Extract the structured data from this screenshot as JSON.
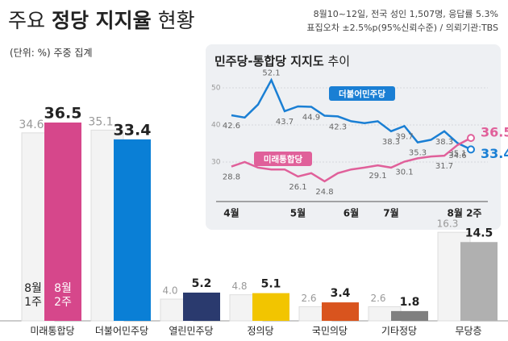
{
  "chart_data": [
    {
      "type": "bar",
      "title": [
        "주요",
        "정당 지지율",
        "현황"
      ],
      "subtitle": "(단위: %) 주중 집계",
      "notes": [
        "8월10~12일, 전국 성인 1,507명, 응답률 5.3%",
        "표집오차 ±2.5%p(95%신뢰수준) / 의뢰기관:TBS"
      ],
      "categories": [
        "미래통합당",
        "더불어민주당",
        "열린민주당",
        "정의당",
        "국민의당",
        "기타정당",
        "무당층"
      ],
      "series": [
        {
          "name": "8월 1주",
          "color": "#f3f3f3",
          "values": [
            34.6,
            35.1,
            4.0,
            4.8,
            2.6,
            2.6,
            16.3
          ],
          "value_labels": [
            "34.6",
            "35.1",
            "4.0",
            "4.8",
            "2.6",
            "2.6",
            "16.3"
          ]
        },
        {
          "name": "8월 2주",
          "colors": [
            "#d6478b",
            "#0a7fd6",
            "#2a3a6e",
            "#f2c500",
            "#d9541e",
            "#7f7f7f",
            "#b0b0b0"
          ],
          "values": [
            36.5,
            33.4,
            5.2,
            5.1,
            3.4,
            1.8,
            14.5
          ]
        }
      ]
    },
    {
      "type": "line",
      "title": [
        "민주당-통합당 지지도",
        "추이"
      ],
      "categories": [
        "4월",
        null,
        null,
        null,
        null,
        "5월",
        null,
        null,
        null,
        "6월",
        null,
        null,
        "7월",
        null,
        null,
        null,
        null,
        null,
        "8월 2주"
      ],
      "ylim": [
        20,
        55
      ],
      "yticks": [
        30,
        40,
        50
      ],
      "grid": true,
      "series": [
        {
          "name": "더불어민주당",
          "color": "#1a7fd4",
          "values": [
            42.6,
            42,
            45.5,
            52.1,
            43.7,
            45,
            44.9,
            42.5,
            42.3,
            41,
            40.5,
            41,
            38.3,
            39.7,
            35.3,
            36,
            38.3,
            35.1,
            33.4
          ],
          "value_labels": [
            "42.6",
            null,
            null,
            "52.1",
            "43.7",
            null,
            "44.9",
            null,
            "42.3",
            null,
            null,
            null,
            "38.3",
            "39.7",
            "35.3",
            null,
            "38.3",
            "35.1",
            "33.4"
          ]
        },
        {
          "name": "미래통합당",
          "color": "#e0609a",
          "values": [
            28.8,
            30,
            28.5,
            28,
            28,
            26.1,
            27,
            24.8,
            27,
            28,
            28.5,
            29.1,
            28.5,
            30.1,
            31,
            31.5,
            31.7,
            34.6,
            36.5
          ],
          "value_labels": [
            "28.8",
            null,
            null,
            null,
            null,
            "26.1",
            null,
            "24.8",
            null,
            null,
            null,
            "29.1",
            null,
            "30.1",
            null,
            null,
            "31.7",
            "34.6",
            "36.5"
          ]
        }
      ]
    }
  ]
}
